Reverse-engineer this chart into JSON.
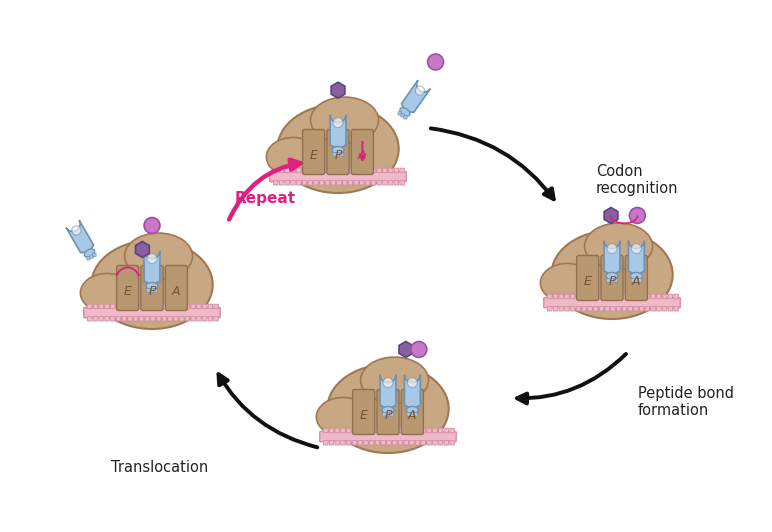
{
  "bg_color": "#ffffff",
  "ribosome_body_color": "#c8a882",
  "ribosome_outline": "#a07850",
  "tRNA_body_color": "#a8c8e8",
  "tRNA_outline": "#7090b0",
  "mRNA_color": "#f0b8c8",
  "mRNA_outline": "#d090a0",
  "amino_circle_color": "#c878c8",
  "amino_hex_color": "#8860a0",
  "slot_color": "#b89870",
  "slot_outline": "#907050",
  "arrow_color": "#1a1a1a",
  "repeat_arrow_color": "#e02080",
  "label_codon": "Codon\nrecognition",
  "label_peptide": "Peptide bond\nformation",
  "label_translocation": "Translocation",
  "label_repeat": "Repeat"
}
